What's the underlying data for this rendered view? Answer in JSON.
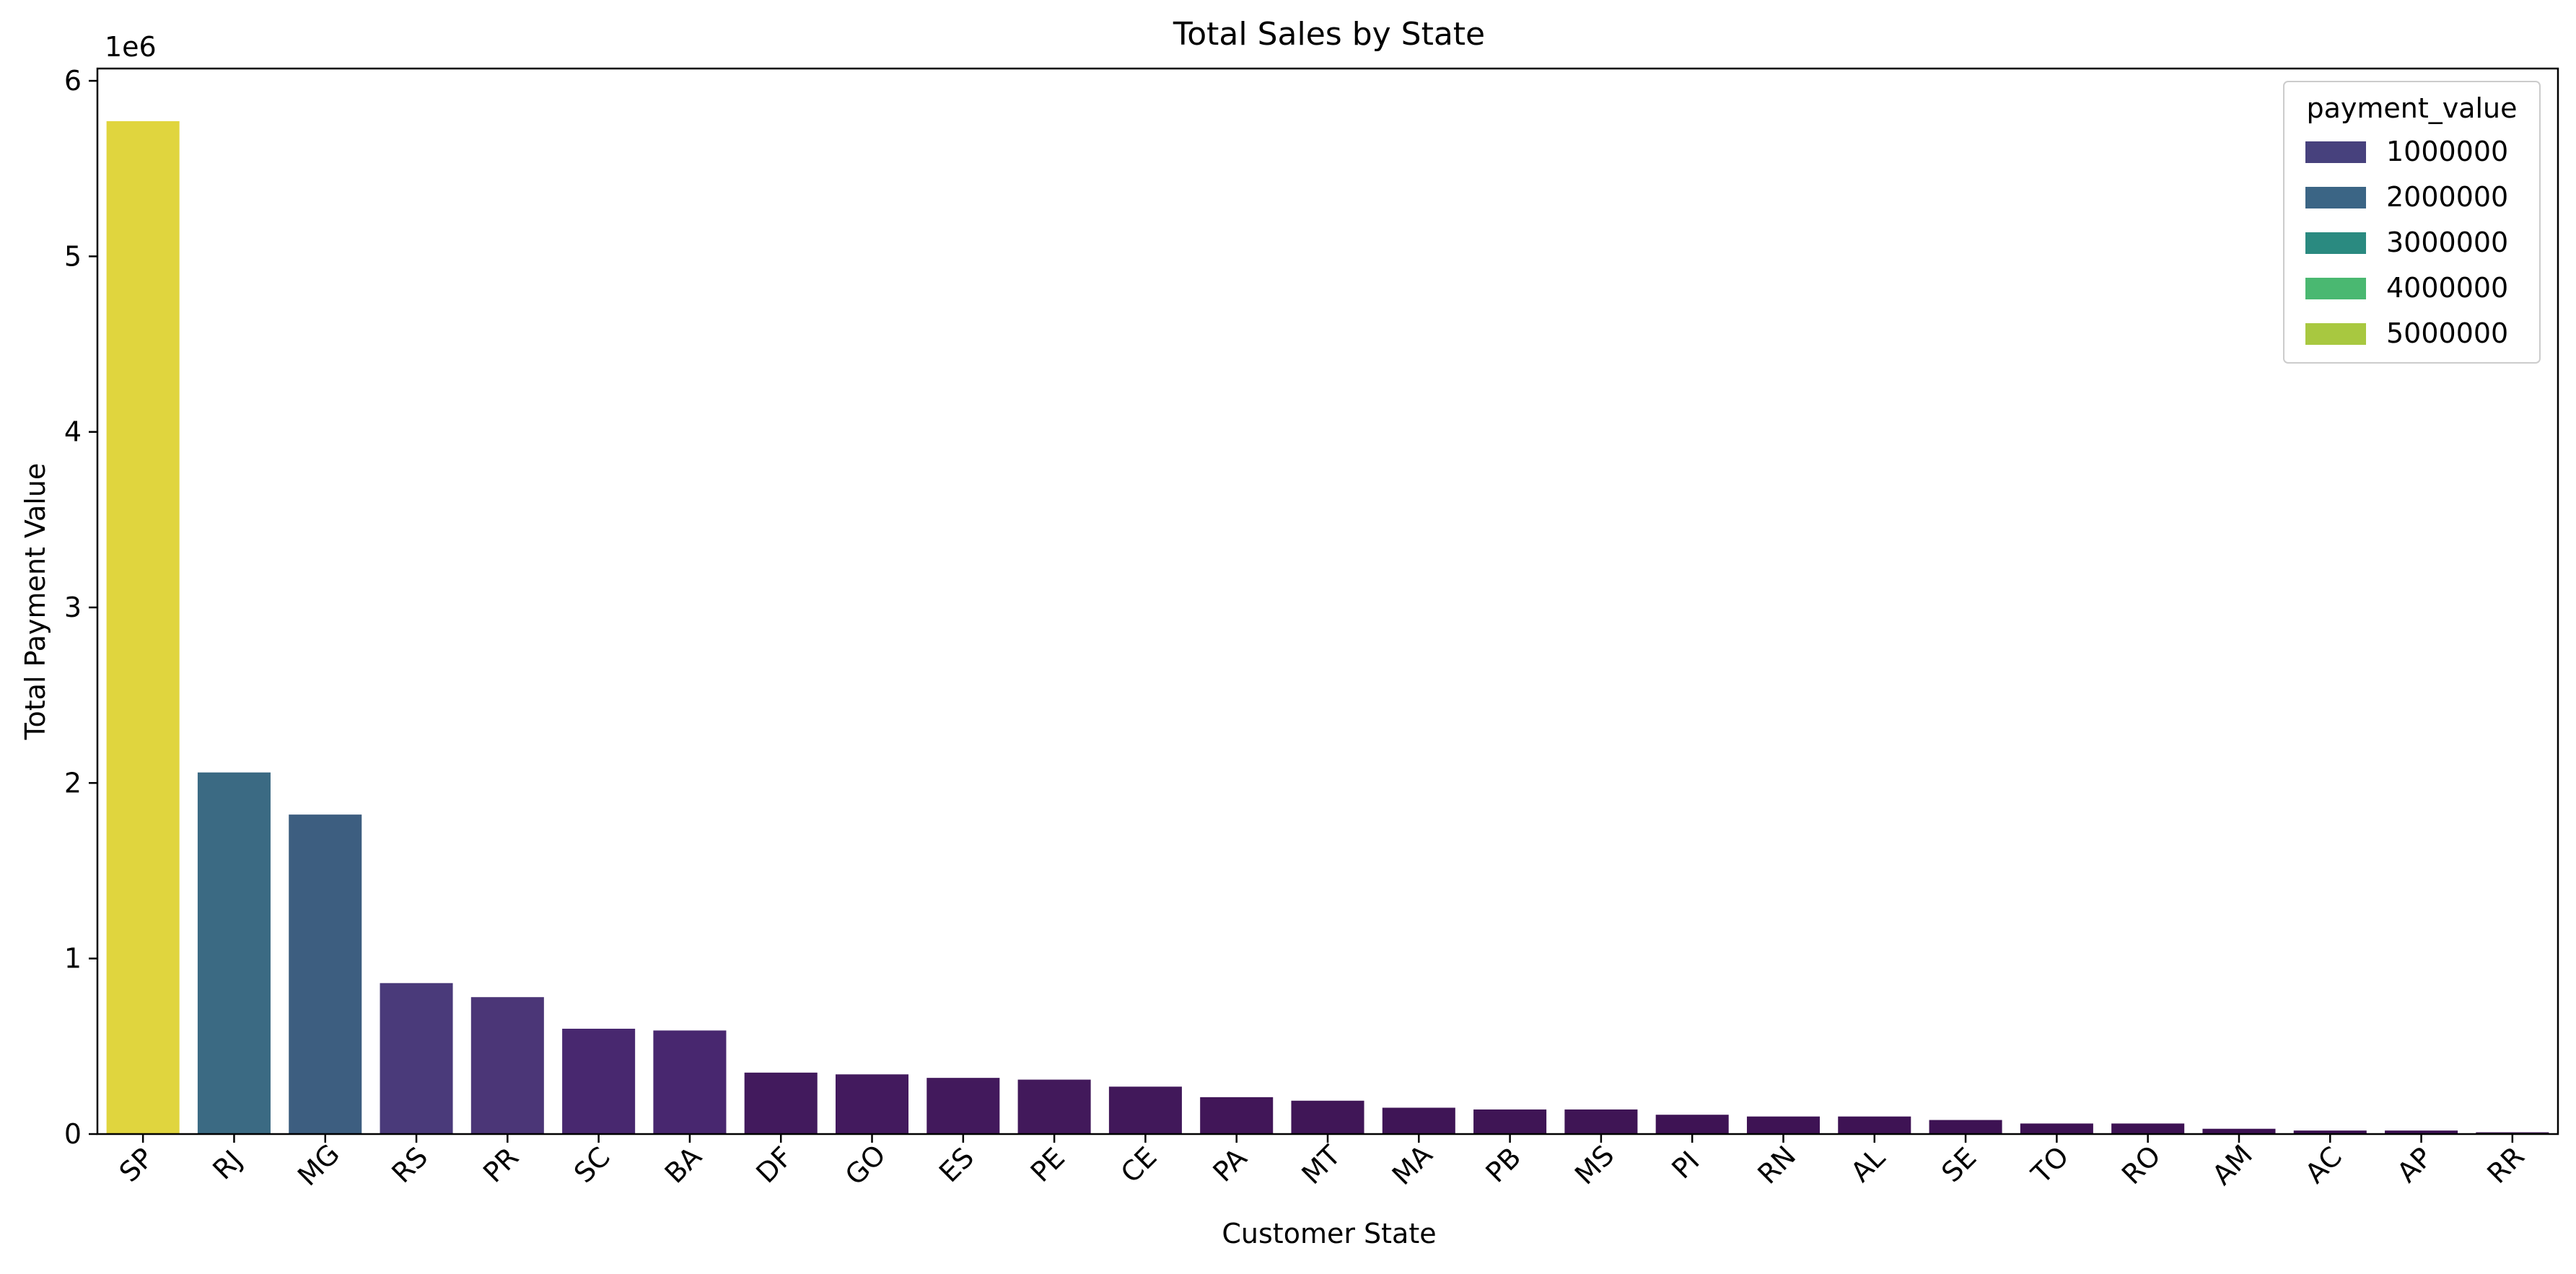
{
  "chart_data": {
    "type": "bar",
    "title": "Total Sales by State",
    "xlabel": "Customer State",
    "ylabel": "Total Payment Value",
    "offset_label": "1e6",
    "ylim": [
      0,
      6.07
    ],
    "yticks": [
      0,
      1,
      2,
      3,
      4,
      5,
      6
    ],
    "y_scale": 1000000,
    "grid": false,
    "legend_position": "top-right",
    "categories": [
      "SP",
      "RJ",
      "MG",
      "RS",
      "PR",
      "SC",
      "BA",
      "DF",
      "GO",
      "ES",
      "PE",
      "CE",
      "PA",
      "MT",
      "MA",
      "PB",
      "MS",
      "PI",
      "RN",
      "AL",
      "SE",
      "TO",
      "RO",
      "AM",
      "AC",
      "AP",
      "RR"
    ],
    "values": [
      5.77,
      2.06,
      1.82,
      0.86,
      0.78,
      0.6,
      0.59,
      0.35,
      0.34,
      0.32,
      0.31,
      0.27,
      0.21,
      0.19,
      0.15,
      0.14,
      0.14,
      0.11,
      0.1,
      0.1,
      0.08,
      0.06,
      0.06,
      0.03,
      0.02,
      0.02,
      0.01
    ],
    "bar_colors": [
      "#e0d53e",
      "#3b6a83",
      "#3d5e80",
      "#4a3a7a",
      "#4b3677",
      "#48286f",
      "#48276f",
      "#421a5d",
      "#431a5e",
      "#42195c",
      "#42195b",
      "#41185a",
      "#411658",
      "#401657",
      "#3f1556",
      "#3f1555",
      "#3f1555",
      "#3e1354",
      "#3e1354",
      "#3e1354",
      "#3d1253",
      "#3d1253",
      "#3d1253",
      "#3c1152",
      "#3c1152",
      "#3c1152",
      "#3b1051"
    ],
    "legend": {
      "title": "payment_value",
      "entries": [
        {
          "label": "1000000",
          "color": "#47417d"
        },
        {
          "label": "2000000",
          "color": "#3b6585"
        },
        {
          "label": "3000000",
          "color": "#2a8a80"
        },
        {
          "label": "4000000",
          "color": "#4ab871"
        },
        {
          "label": "5000000",
          "color": "#a8c840"
        }
      ]
    }
  }
}
